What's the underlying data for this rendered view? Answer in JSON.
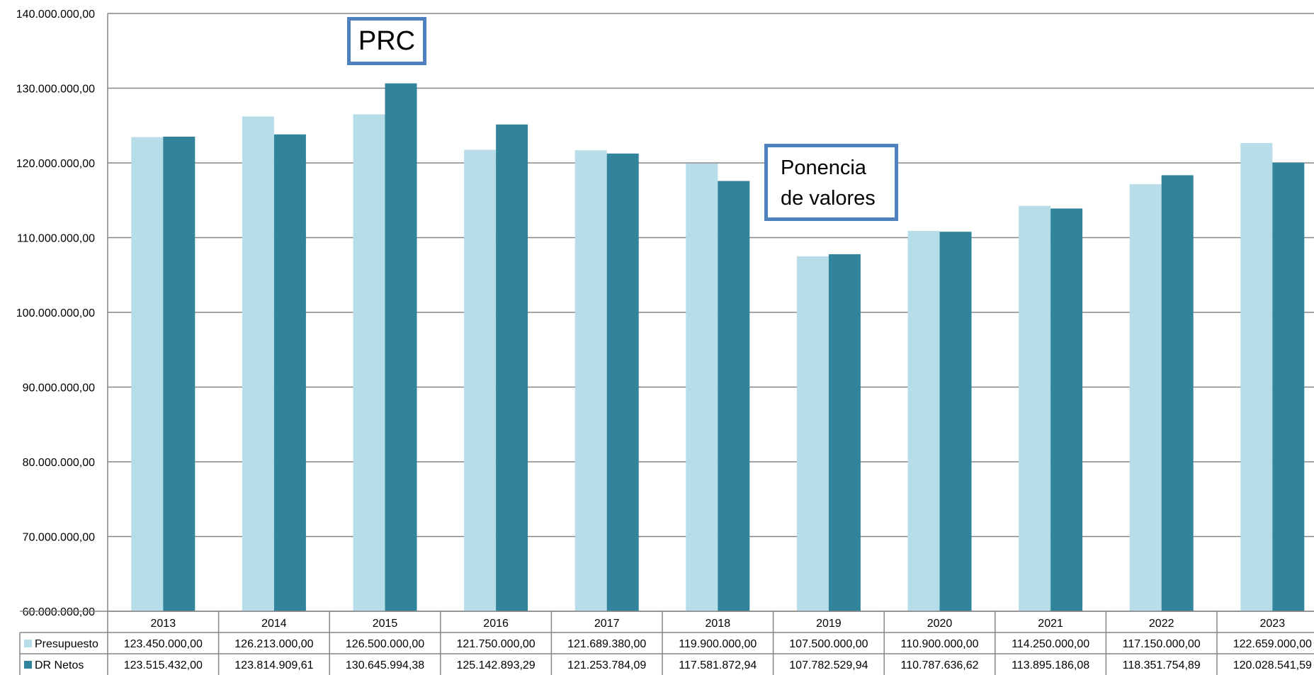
{
  "chart_data": {
    "type": "bar",
    "categories": [
      "2013",
      "2014",
      "2015",
      "2016",
      "2017",
      "2018",
      "2019",
      "2020",
      "2021",
      "2022",
      "2023"
    ],
    "series": [
      {
        "name": "Presupuesto",
        "color": "#b7dde8",
        "values": [
          123450000,
          126213000,
          126500000,
          121750000,
          121689380,
          119900000,
          107500000,
          110900000,
          114250000,
          117150000,
          122659000
        ],
        "labels": [
          "123.450.000,00",
          "126.213.000,00",
          "126.500.000,00",
          "121.750.000,00",
          "121.689.380,00",
          "119.900.000,00",
          "107.500.000,00",
          "110.900.000,00",
          "114.250.000,00",
          "117.150.000,00",
          "122.659.000,00"
        ]
      },
      {
        "name": "DR Netos",
        "color": "#31849b",
        "values": [
          123515432,
          123814909.61,
          130645994.38,
          125142893.29,
          121253784.09,
          117581872.94,
          107782529.94,
          110787636.62,
          113895186.08,
          118351754.89,
          120028541.59
        ],
        "labels": [
          "123.515.432,00",
          "123.814.909,61",
          "130.645.994,38",
          "125.142.893,29",
          "121.253.784,09",
          "117.581.872,94",
          "107.782.529,94",
          "110.787.636,62",
          "113.895.186,08",
          "118.351.754,89",
          "120.028.541,59"
        ]
      }
    ],
    "ylim": [
      60000000,
      140000000
    ],
    "yticks": [
      60000000,
      70000000,
      80000000,
      90000000,
      100000000,
      110000000,
      120000000,
      130000000,
      140000000
    ],
    "ytick_labels": [
      "60.000.000,00",
      "70.000.000,00",
      "80.000.000,00",
      "90.000.000,00",
      "100.000.000,00",
      "110.000.000,00",
      "120.000.000,00",
      "130.000.000,00",
      "140.000.000,00"
    ],
    "grid": true,
    "legend": "data-table",
    "annotations": [
      "PRC",
      "Ponencia de valores"
    ]
  },
  "annotations": {
    "prc": "PRC",
    "ponencia_line1": "Ponencia",
    "ponencia_line2": "de valores"
  }
}
